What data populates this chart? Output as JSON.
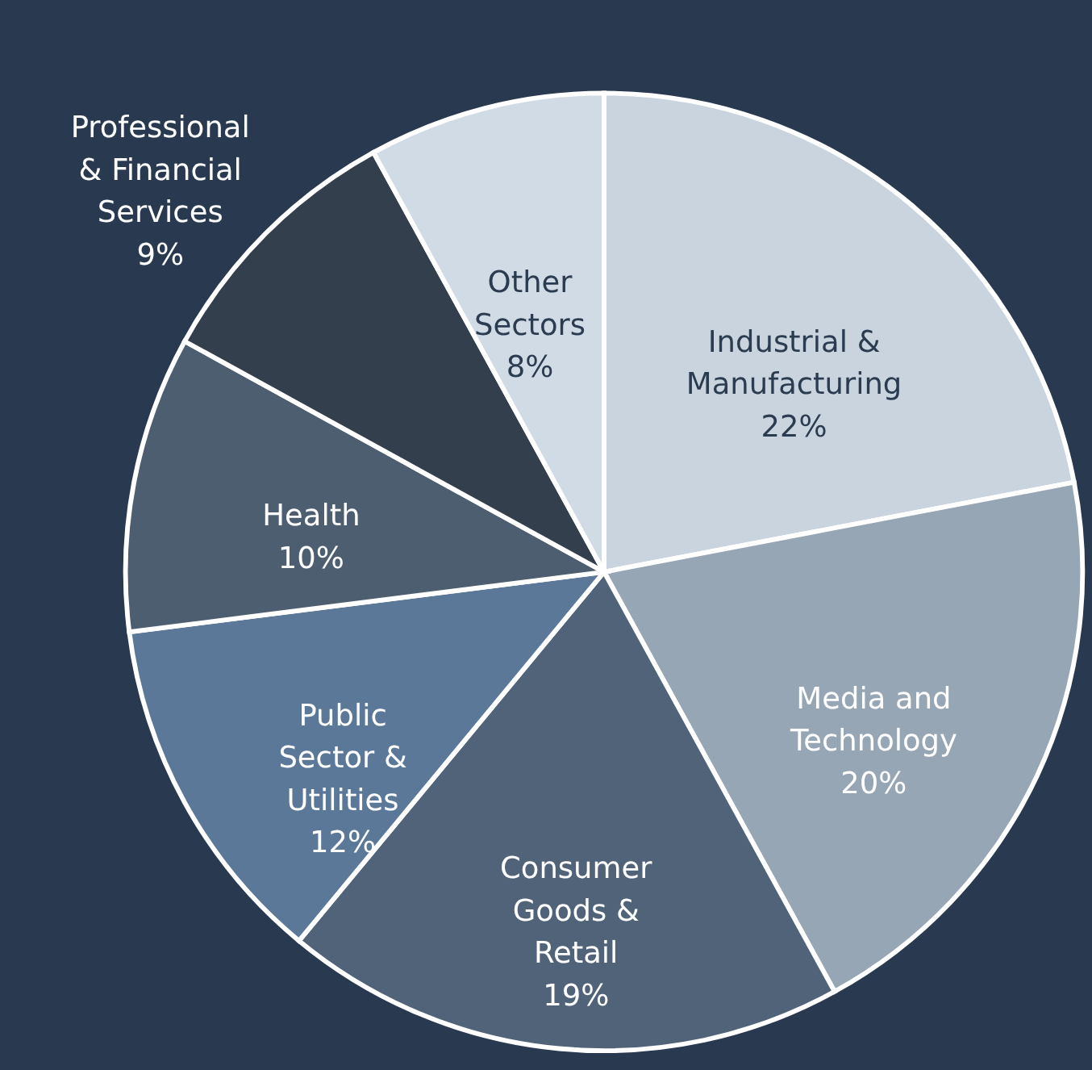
{
  "chart_data": {
    "type": "pie",
    "categories": [
      "Industrial & Manufacturing",
      "Media and Technology",
      "Consumer Goods & Retail",
      "Public Sector & Utilities",
      "Health",
      "Professional & Financial Services",
      "Other Sectors"
    ],
    "values": [
      22,
      20,
      19,
      12,
      10,
      9,
      8
    ],
    "value_labels": [
      "22%",
      "20%",
      "19%",
      "12%",
      "10%",
      "9%",
      "8%"
    ],
    "colors": [
      "#c9d4df",
      "#96a6b5",
      "#506379",
      "#5c7898",
      "#4d5e71",
      "#333f4d",
      "#d1dbe6"
    ],
    "legend": false
  }
}
